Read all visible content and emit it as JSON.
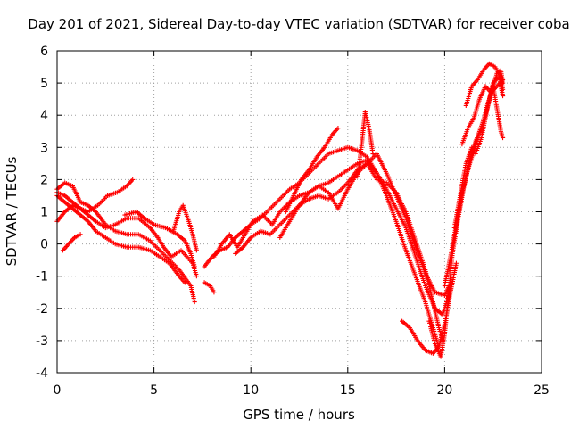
{
  "chart_data": {
    "type": "scatter",
    "title": "Day 201 of 2021, Sidereal Day-to-day VTEC variation (SDTVAR) for receiver coba",
    "xlabel": "GPS time / hours",
    "ylabel": "SDTVAR / TECUs",
    "xlim": [
      0,
      25
    ],
    "ylim": [
      -4,
      6
    ],
    "xticks": [
      "0",
      "5",
      "10",
      "15",
      "20",
      "25"
    ],
    "yticks": [
      "-4",
      "-3",
      "-2",
      "-1",
      "0",
      "1",
      "2",
      "3",
      "4",
      "5",
      "6"
    ],
    "grid": true,
    "series_color": "#ff0000",
    "marker": "plus",
    "series": [
      {
        "values": [
          [
            0,
            1.7
          ],
          [
            0.4,
            1.9
          ],
          [
            0.8,
            1.8
          ],
          [
            1.2,
            1.3
          ],
          [
            1.6,
            1.2
          ],
          [
            2.0,
            1.0
          ],
          [
            2.5,
            0.6
          ],
          [
            3.0,
            0.4
          ],
          [
            3.6,
            0.3
          ],
          [
            4.2,
            0.3
          ],
          [
            4.8,
            0.1
          ],
          [
            5.3,
            -0.2
          ],
          [
            5.8,
            -0.5
          ],
          [
            6.3,
            -0.8
          ],
          [
            6.9,
            -1.3
          ],
          [
            7.1,
            -1.8
          ]
        ]
      },
      {
        "values": [
          [
            0,
            1.6
          ],
          [
            0.4,
            1.5
          ],
          [
            0.8,
            1.3
          ],
          [
            1.2,
            1.1
          ],
          [
            1.6,
            0.9
          ],
          [
            2.0,
            0.7
          ],
          [
            2.5,
            0.5
          ],
          [
            3.0,
            0.6
          ],
          [
            3.6,
            0.8
          ],
          [
            4.2,
            0.8
          ],
          [
            4.8,
            0.5
          ],
          [
            5.2,
            0.2
          ],
          [
            5.5,
            -0.1
          ],
          [
            5.9,
            -0.4
          ],
          [
            6.4,
            -0.2
          ],
          [
            7.0,
            -0.6
          ],
          [
            7.2,
            -1.0
          ]
        ]
      },
      {
        "values": [
          [
            0,
            1.5
          ],
          [
            0.4,
            1.3
          ],
          [
            0.8,
            1.1
          ],
          [
            1.2,
            0.9
          ],
          [
            1.6,
            0.7
          ],
          [
            2.0,
            0.4
          ],
          [
            2.5,
            0.2
          ],
          [
            3.0,
            0.0
          ],
          [
            3.6,
            -0.1
          ],
          [
            4.2,
            -0.1
          ],
          [
            4.8,
            -0.2
          ],
          [
            5.3,
            -0.4
          ],
          [
            5.8,
            -0.6
          ],
          [
            6.3,
            -1.0
          ],
          [
            6.6,
            -1.2
          ]
        ]
      },
      {
        "values": [
          [
            0,
            0.7
          ],
          [
            0.4,
            1.0
          ],
          [
            0.8,
            1.2
          ],
          [
            1.2,
            1.1
          ],
          [
            1.6,
            1.0
          ],
          [
            2.1,
            1.2
          ],
          [
            2.6,
            1.5
          ],
          [
            3.1,
            1.6
          ],
          [
            3.6,
            1.8
          ],
          [
            3.9,
            2.0
          ]
        ]
      },
      {
        "values": [
          [
            0.3,
            -0.2
          ],
          [
            0.6,
            0.0
          ],
          [
            0.9,
            0.2
          ],
          [
            1.2,
            0.3
          ]
        ]
      },
      {
        "values": [
          [
            3.5,
            0.9
          ],
          [
            4.1,
            1.0
          ],
          [
            4.5,
            0.8
          ],
          [
            5.0,
            0.6
          ],
          [
            5.6,
            0.5
          ],
          [
            6.2,
            0.3
          ],
          [
            6.6,
            0.1
          ],
          [
            6.9,
            -0.3
          ],
          [
            7.1,
            -0.7
          ]
        ]
      },
      {
        "values": [
          [
            6.0,
            0.4
          ],
          [
            6.3,
            1.0
          ],
          [
            6.5,
            1.2
          ],
          [
            6.8,
            0.7
          ],
          [
            7.0,
            0.3
          ],
          [
            7.2,
            -0.2
          ]
        ]
      },
      {
        "values": [
          [
            7.6,
            -1.2
          ],
          [
            7.9,
            -1.3
          ],
          [
            8.1,
            -1.5
          ]
        ]
      },
      {
        "values": [
          [
            7.6,
            -0.7
          ],
          [
            8.0,
            -0.4
          ],
          [
            8.4,
            -0.2
          ],
          [
            8.8,
            -0.1
          ],
          [
            9.2,
            0.2
          ],
          [
            9.6,
            0.4
          ],
          [
            10.0,
            0.6
          ],
          [
            10.5,
            0.8
          ],
          [
            11.0,
            1.1
          ],
          [
            11.5,
            1.4
          ],
          [
            12.0,
            1.7
          ],
          [
            12.5,
            1.9
          ],
          [
            13.0,
            2.2
          ],
          [
            13.5,
            2.5
          ],
          [
            14.0,
            2.8
          ],
          [
            14.5,
            2.9
          ],
          [
            15.0,
            3.0
          ],
          [
            15.5,
            2.9
          ],
          [
            16.0,
            2.7
          ],
          [
            16.5,
            2.2
          ],
          [
            17.0,
            1.7
          ],
          [
            17.5,
            1.1
          ],
          [
            18.0,
            0.5
          ],
          [
            18.5,
            -0.4
          ],
          [
            19.0,
            -1.3
          ],
          [
            19.5,
            -2.0
          ],
          [
            19.9,
            -2.2
          ],
          [
            20.3,
            -1.4
          ]
        ]
      },
      {
        "values": [
          [
            8.1,
            -0.4
          ],
          [
            8.5,
            0.0
          ],
          [
            8.9,
            0.3
          ],
          [
            9.3,
            -0.1
          ],
          [
            9.7,
            0.3
          ],
          [
            10.1,
            0.7
          ],
          [
            10.6,
            0.9
          ],
          [
            11.1,
            0.6
          ],
          [
            11.5,
            1.0
          ],
          [
            12.0,
            1.3
          ],
          [
            12.5,
            1.5
          ],
          [
            13.0,
            1.6
          ],
          [
            13.5,
            1.8
          ],
          [
            14.0,
            1.9
          ],
          [
            14.5,
            2.1
          ],
          [
            15.0,
            2.3
          ],
          [
            15.5,
            2.5
          ],
          [
            16.0,
            2.6
          ],
          [
            16.5,
            2.2
          ],
          [
            17.0,
            1.5
          ],
          [
            17.5,
            0.7
          ],
          [
            18.0,
            -0.2
          ],
          [
            18.5,
            -1.0
          ],
          [
            19.0,
            -1.8
          ],
          [
            19.4,
            -2.6
          ],
          [
            19.7,
            -3.2
          ]
        ]
      },
      {
        "values": [
          [
            9.2,
            -0.3
          ],
          [
            9.6,
            -0.1
          ],
          [
            10.0,
            0.2
          ],
          [
            10.5,
            0.4
          ],
          [
            11.0,
            0.3
          ],
          [
            11.5,
            0.6
          ],
          [
            12.0,
            0.9
          ],
          [
            12.5,
            1.2
          ],
          [
            13.0,
            1.4
          ],
          [
            13.5,
            1.5
          ],
          [
            14.0,
            1.4
          ],
          [
            14.5,
            1.6
          ],
          [
            15.0,
            1.9
          ],
          [
            15.5,
            2.3
          ],
          [
            16.0,
            2.5
          ],
          [
            16.5,
            2.8
          ],
          [
            17.0,
            2.2
          ],
          [
            17.5,
            1.5
          ],
          [
            18.0,
            0.8
          ],
          [
            18.5,
            -0.1
          ],
          [
            19.0,
            -0.9
          ],
          [
            19.5,
            -1.5
          ],
          [
            20.0,
            -1.6
          ],
          [
            20.3,
            -1.2
          ]
        ]
      },
      {
        "values": [
          [
            11.5,
            0.2
          ],
          [
            12.0,
            0.7
          ],
          [
            12.5,
            1.2
          ],
          [
            13.0,
            1.6
          ],
          [
            13.5,
            1.8
          ],
          [
            14.0,
            1.6
          ],
          [
            14.5,
            1.1
          ],
          [
            15.0,
            1.7
          ],
          [
            15.5,
            2.2
          ],
          [
            16.0,
            2.5
          ],
          [
            16.5,
            2.0
          ],
          [
            17.0,
            1.9
          ],
          [
            17.5,
            1.6
          ],
          [
            18.0,
            1.0
          ],
          [
            18.5,
            0.1
          ],
          [
            19.0,
            -0.8
          ],
          [
            19.4,
            -1.8
          ],
          [
            19.7,
            -2.6
          ],
          [
            19.9,
            -3.0
          ]
        ]
      },
      {
        "values": [
          [
            11.8,
            1.0
          ],
          [
            12.2,
            1.5
          ],
          [
            12.6,
            2.0
          ],
          [
            13.0,
            2.3
          ],
          [
            13.4,
            2.7
          ],
          [
            13.8,
            3.0
          ],
          [
            14.2,
            3.4
          ],
          [
            14.5,
            3.6
          ]
        ]
      },
      {
        "values": [
          [
            15.5,
            2.1
          ],
          [
            15.7,
            3.0
          ],
          [
            15.9,
            4.1
          ],
          [
            16.1,
            3.6
          ],
          [
            16.3,
            2.8
          ]
        ]
      },
      {
        "values": [
          [
            17.8,
            -2.4
          ],
          [
            18.2,
            -2.6
          ],
          [
            18.6,
            -3.0
          ],
          [
            19.0,
            -3.3
          ],
          [
            19.4,
            -3.4
          ],
          [
            19.7,
            -3.2
          ],
          [
            20.0,
            -2.5
          ],
          [
            20.3,
            -1.5
          ],
          [
            20.6,
            -0.6
          ]
        ]
      },
      {
        "values": [
          [
            19.2,
            -2.4
          ],
          [
            19.5,
            -3.1
          ],
          [
            19.8,
            -3.5
          ],
          [
            20.0,
            -2.8
          ],
          [
            20.2,
            -1.6
          ],
          [
            20.4,
            -0.3
          ],
          [
            20.7,
            0.8
          ],
          [
            21.0,
            1.8
          ],
          [
            21.3,
            2.6
          ],
          [
            21.6,
            3.2
          ],
          [
            21.9,
            3.6
          ],
          [
            22.2,
            4.3
          ],
          [
            22.5,
            4.9
          ],
          [
            22.7,
            4.2
          ],
          [
            22.9,
            3.5
          ],
          [
            23.0,
            3.3
          ]
        ]
      },
      {
        "values": [
          [
            20.0,
            -1.3
          ],
          [
            20.3,
            -0.4
          ],
          [
            20.6,
            0.6
          ],
          [
            20.9,
            1.6
          ],
          [
            21.2,
            2.3
          ],
          [
            21.5,
            2.9
          ],
          [
            21.8,
            3.5
          ],
          [
            22.1,
            4.0
          ],
          [
            22.4,
            4.7
          ],
          [
            22.7,
            5.3
          ],
          [
            22.9,
            5.4
          ],
          [
            23.0,
            5.0
          ]
        ]
      },
      {
        "values": [
          [
            20.5,
            0.5
          ],
          [
            20.8,
            1.5
          ],
          [
            21.1,
            2.5
          ],
          [
            21.4,
            3.0
          ],
          [
            21.6,
            2.8
          ],
          [
            21.9,
            3.3
          ],
          [
            22.2,
            4.2
          ],
          [
            22.5,
            5.0
          ],
          [
            22.8,
            5.2
          ],
          [
            23.0,
            4.6
          ]
        ]
      },
      {
        "values": [
          [
            21.1,
            4.3
          ],
          [
            21.4,
            4.9
          ],
          [
            21.7,
            5.1
          ],
          [
            22.0,
            5.4
          ],
          [
            22.3,
            5.6
          ],
          [
            22.6,
            5.5
          ],
          [
            22.9,
            5.2
          ],
          [
            23.0,
            4.8
          ]
        ]
      },
      {
        "values": [
          [
            20.9,
            3.1
          ],
          [
            21.2,
            3.6
          ],
          [
            21.5,
            3.9
          ],
          [
            21.8,
            4.5
          ],
          [
            22.1,
            4.9
          ],
          [
            22.4,
            4.7
          ],
          [
            22.7,
            4.9
          ],
          [
            23.0,
            5.1
          ]
        ]
      }
    ]
  }
}
